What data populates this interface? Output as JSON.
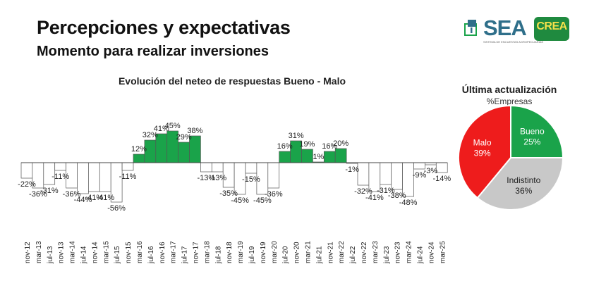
{
  "header": {
    "title": "Percepciones y expectativas",
    "subtitle": "Momento para realizar inversiones"
  },
  "logos": {
    "sea_text": "SEA",
    "sea_sub": "SISTEMA DE ENCUESTAS AGROPECUARIAS",
    "crea_text": "CREA"
  },
  "colors": {
    "positive": "#1aa34a",
    "negative": "#ffffff",
    "bar_border": "#555555",
    "pie_bueno": "#1aa34a",
    "pie_malo": "#ee1c1c",
    "pie_indistinto": "#c8c8c8"
  },
  "chart_data": [
    {
      "type": "bar",
      "title": "Evolución del neteo de respuestas Bueno - Malo",
      "categories": [
        "nov-12",
        "mar-13",
        "jul-13",
        "nov-13",
        "mar-14",
        "jul-14",
        "nov-14",
        "mar-15",
        "jul-15",
        "nov-15",
        "mar-16",
        "jul-16",
        "nov-16",
        "mar-17",
        "jul-17",
        "nov-17",
        "mar-18",
        "jul-18",
        "nov-18",
        "mar-19",
        "jul-19",
        "nov-19",
        "mar-20",
        "jul-20",
        "nov-20",
        "mar-21",
        "jul-21",
        "nov-21",
        "mar-22",
        "jul-22",
        "nov-22",
        "mar-23",
        "jul-23",
        "nov-23",
        "mar-24",
        "jul-24",
        "nov-24",
        "mar-25"
      ],
      "values": [
        -22,
        -36,
        -31,
        -11,
        -36,
        -44,
        -41,
        -41,
        -56,
        -11,
        12,
        32,
        41,
        45,
        29,
        38,
        -13,
        -13,
        -35,
        -45,
        -15,
        -45,
        -36,
        16,
        31,
        19,
        1,
        16,
        20,
        -1,
        -32,
        -41,
        -31,
        -38,
        -48,
        -9,
        -3,
        -14
      ],
      "labels": [
        "-22%",
        "-36%",
        "-31%",
        "-11%",
        "-36%",
        "-44%",
        "-41%",
        "-41%",
        "-56%",
        "-11%",
        "12%",
        "32%",
        "41%",
        "45%",
        "29%",
        "38%",
        "-13%",
        "-13%",
        "-35%",
        "-45%",
        "-15%",
        "-45%",
        "-36%",
        "16%",
        "31%",
        "19%",
        "1%",
        "16%",
        "20%",
        "-1%",
        "-32%",
        "-41%",
        "-31%",
        "-38%",
        "-48%",
        "-9%",
        "-3%",
        "-14%"
      ],
      "xlabel": "",
      "ylabel": ""
    },
    {
      "type": "pie",
      "title": "Última actualización",
      "subtitle": "%Empresas",
      "slices": [
        {
          "name": "Bueno",
          "value": 25,
          "label": "25%"
        },
        {
          "name": "Indistinto",
          "value": 36,
          "label": "36%"
        },
        {
          "name": "Malo",
          "value": 39,
          "label": "39%"
        }
      ]
    }
  ]
}
